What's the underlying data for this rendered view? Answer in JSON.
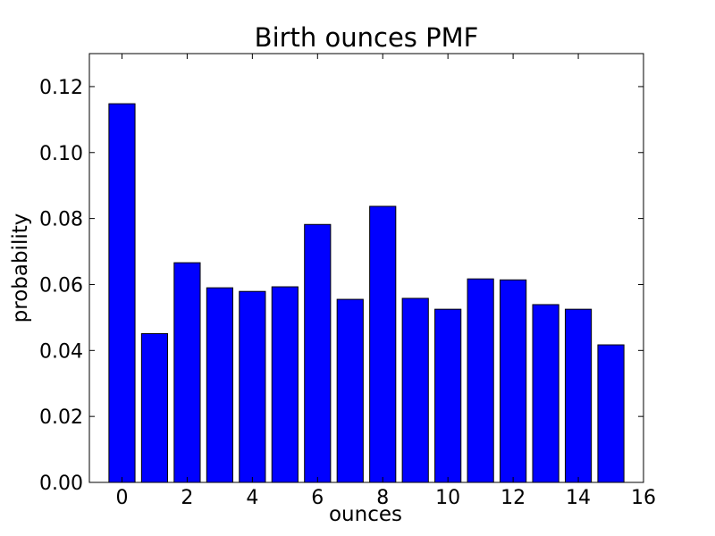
{
  "colors": {
    "background": "#ffffff",
    "bar_fill": "#0000ff",
    "bar_edge": "#000000",
    "axis": "#000000"
  },
  "chart_data": {
    "type": "bar",
    "title": "Birth ounces PMF",
    "xlabel": "ounces",
    "ylabel": "probability",
    "xlim": [
      -1,
      16
    ],
    "ylim": [
      0,
      0.13
    ],
    "grid": false,
    "x_ticks": [
      0,
      2,
      4,
      6,
      8,
      10,
      12,
      14,
      16
    ],
    "x_tick_labels": [
      "0",
      "2",
      "4",
      "6",
      "8",
      "10",
      "12",
      "14",
      "16"
    ],
    "y_ticks": [
      0.0,
      0.02,
      0.04,
      0.06,
      0.08,
      0.1,
      0.12
    ],
    "y_tick_labels": [
      "0.00",
      "0.02",
      "0.04",
      "0.06",
      "0.08",
      "0.10",
      "0.12"
    ],
    "x": [
      0,
      1,
      2,
      3,
      4,
      5,
      6,
      7,
      8,
      9,
      10,
      11,
      12,
      13,
      14,
      15
    ],
    "values": [
      0.1148,
      0.0451,
      0.0666,
      0.059,
      0.0579,
      0.0593,
      0.0782,
      0.0555,
      0.0837,
      0.0558,
      0.0525,
      0.0617,
      0.0614,
      0.0539,
      0.0525,
      0.0417
    ],
    "bar_width": 0.8
  }
}
